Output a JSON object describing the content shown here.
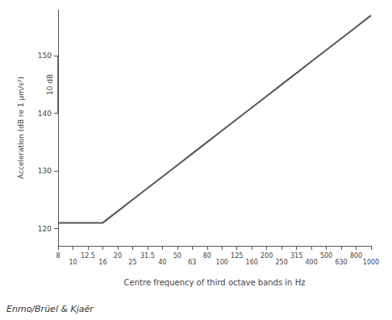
{
  "chart_data": {
    "type": "line",
    "x_label": "Centre frequency of third octave bands in Hz",
    "y_label": "Acceleration (dB re 1 µm/s²)",
    "categories": [
      "8",
      "10",
      "12.5",
      "16",
      "20",
      "25",
      "31.5",
      "40",
      "50",
      "63",
      "80",
      "100",
      "125",
      "160",
      "200",
      "250",
      "315",
      "400",
      "500",
      "630",
      "800",
      "1000"
    ],
    "values": [
      121,
      121,
      121,
      121,
      123,
      125,
      127,
      129,
      131,
      133,
      135,
      137,
      139,
      141,
      143,
      145,
      147,
      149,
      151,
      153,
      155,
      157
    ],
    "color": "#555555",
    "ylim": [
      117,
      158
    ],
    "yticks": [
      120,
      130,
      140,
      150
    ],
    "grid": false,
    "scale_bar": {
      "label": "10 dB",
      "from": 140,
      "to": 150
    },
    "annotations": [
      "Enmo/Brüel & Kjaër"
    ]
  }
}
